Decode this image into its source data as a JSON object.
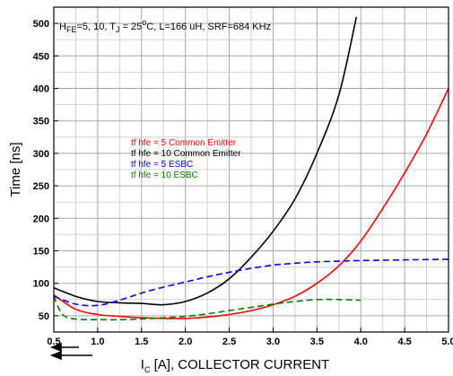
{
  "chart_data": {
    "type": "line",
    "conditions": {
      "h": "H",
      "h_sub": "FE",
      "mid": "=5, 10, T",
      "tj_sub": "J",
      "eq": " = 25",
      "deg": "o",
      "rest": "C, L=166 uH, SRF=684 KHz"
    },
    "ylabel": "Time [ns]",
    "xlabel_main": "I",
    "xlabel_sub": "C",
    "xlabel_rest": " [A], COLLECTOR CURRENT",
    "xlim": [
      0.5,
      5.0
    ],
    "ylim": [
      25,
      525
    ],
    "x_ticks": [
      {
        "v": 0.5,
        "label": "0.5"
      },
      {
        "v": 1.0,
        "label": "1.0"
      },
      {
        "v": 1.5,
        "label": "1.5"
      },
      {
        "v": 2.0,
        "label": "2.0"
      },
      {
        "v": 2.5,
        "label": "2.5"
      },
      {
        "v": 3.0,
        "label": "3.0"
      },
      {
        "v": 3.5,
        "label": "3.5"
      },
      {
        "v": 4.0,
        "label": "4.0"
      },
      {
        "v": 4.5,
        "label": "4.5"
      },
      {
        "v": 5.0,
        "label": "5.0"
      }
    ],
    "y_ticks": [
      {
        "v": 50,
        "label": "50"
      },
      {
        "v": 100,
        "label": "100"
      },
      {
        "v": 150,
        "label": "150"
      },
      {
        "v": 200,
        "label": "200"
      },
      {
        "v": 250,
        "label": "250"
      },
      {
        "v": 300,
        "label": "300"
      },
      {
        "v": 350,
        "label": "350"
      },
      {
        "v": 400,
        "label": "400"
      },
      {
        "v": 450,
        "label": "450"
      },
      {
        "v": 500,
        "label": "500"
      }
    ],
    "grid": true,
    "legend_position": "center-left",
    "series": [
      {
        "name": "tf hfe = 5 Common Emitter",
        "color": "#ff0000",
        "dash": false,
        "points": [
          [
            0.5,
            82
          ],
          [
            0.75,
            60
          ],
          [
            1.0,
            52
          ],
          [
            1.25,
            49
          ],
          [
            1.5,
            47
          ],
          [
            1.75,
            46
          ],
          [
            2.0,
            46
          ],
          [
            2.25,
            48
          ],
          [
            2.5,
            52
          ],
          [
            2.75,
            58
          ],
          [
            3.0,
            67
          ],
          [
            3.25,
            80
          ],
          [
            3.5,
            100
          ],
          [
            3.75,
            127
          ],
          [
            4.0,
            165
          ],
          [
            4.25,
            215
          ],
          [
            4.5,
            270
          ],
          [
            4.75,
            330
          ],
          [
            5.0,
            400
          ]
        ]
      },
      {
        "name": "tf hfe = 10 Common Emitter",
        "color": "#000000",
        "dash": false,
        "points": [
          [
            0.5,
            93
          ],
          [
            0.75,
            80
          ],
          [
            1.0,
            72
          ],
          [
            1.25,
            70
          ],
          [
            1.5,
            69
          ],
          [
            1.75,
            67
          ],
          [
            2.0,
            72
          ],
          [
            2.25,
            85
          ],
          [
            2.5,
            107
          ],
          [
            2.75,
            140
          ],
          [
            3.0,
            180
          ],
          [
            3.25,
            230
          ],
          [
            3.5,
            300
          ],
          [
            3.75,
            390
          ],
          [
            3.95,
            510
          ]
        ]
      },
      {
        "name": "tf hfe = 5 ESBC",
        "color": "#0000ff",
        "dash": true,
        "points": [
          [
            0.5,
            80
          ],
          [
            0.75,
            68
          ],
          [
            1.0,
            66
          ],
          [
            1.25,
            74
          ],
          [
            1.5,
            85
          ],
          [
            1.75,
            94
          ],
          [
            2.0,
            102
          ],
          [
            2.25,
            110
          ],
          [
            2.5,
            117
          ],
          [
            2.75,
            123
          ],
          [
            3.0,
            128
          ],
          [
            3.25,
            131
          ],
          [
            3.5,
            133
          ],
          [
            3.75,
            134
          ],
          [
            4.0,
            135
          ],
          [
            4.5,
            136
          ],
          [
            5.0,
            137
          ]
        ]
      },
      {
        "name": "tf hfe = 10 ESBC",
        "color": "#008000",
        "dash": true,
        "points": [
          [
            0.5,
            80
          ],
          [
            0.6,
            52
          ],
          [
            0.75,
            45
          ],
          [
            1.0,
            44
          ],
          [
            1.25,
            44
          ],
          [
            1.5,
            45
          ],
          [
            1.75,
            47
          ],
          [
            2.0,
            49
          ],
          [
            2.25,
            53
          ],
          [
            2.5,
            58
          ],
          [
            2.75,
            63
          ],
          [
            3.0,
            68
          ],
          [
            3.25,
            72
          ],
          [
            3.5,
            75
          ],
          [
            3.75,
            75
          ],
          [
            4.0,
            74
          ]
        ]
      }
    ]
  }
}
